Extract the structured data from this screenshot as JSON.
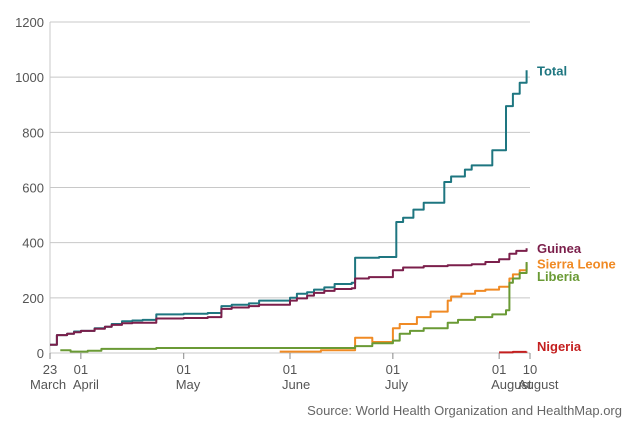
{
  "chart_data": {
    "type": "line",
    "ylim": [
      0,
      1200
    ],
    "yticks": [
      0,
      200,
      400,
      600,
      800,
      1000,
      1200
    ],
    "grid": "horizontal",
    "x_range": [
      "2014-03-23",
      "2014-08-10"
    ],
    "xticks": [
      {
        "date": "2014-03-23",
        "day": "23",
        "month": "March"
      },
      {
        "date": "2014-04-01",
        "day": "01",
        "month": "April"
      },
      {
        "date": "2014-05-01",
        "day": "01",
        "month": "May"
      },
      {
        "date": "2014-06-01",
        "day": "01",
        "month": "June"
      },
      {
        "date": "2014-07-01",
        "day": "01",
        "month": "July"
      },
      {
        "date": "2014-08-01",
        "day": "01",
        "month": "August"
      },
      {
        "date": "2014-08-10",
        "day": "10",
        "month": "August"
      }
    ],
    "series": [
      {
        "name": "Total",
        "color": "#1e7680",
        "points": [
          [
            "2014-03-23",
            30
          ],
          [
            "2014-03-25",
            65
          ],
          [
            "2014-03-28",
            70
          ],
          [
            "2014-03-30",
            78
          ],
          [
            "2014-04-01",
            80
          ],
          [
            "2014-04-05",
            90
          ],
          [
            "2014-04-08",
            95
          ],
          [
            "2014-04-10",
            105
          ],
          [
            "2014-04-13",
            115
          ],
          [
            "2014-04-16",
            118
          ],
          [
            "2014-04-19",
            120
          ],
          [
            "2014-04-23",
            140
          ],
          [
            "2014-05-01",
            142
          ],
          [
            "2014-05-08",
            145
          ],
          [
            "2014-05-12",
            170
          ],
          [
            "2014-05-15",
            175
          ],
          [
            "2014-05-20",
            180
          ],
          [
            "2014-05-23",
            190
          ],
          [
            "2014-06-01",
            200
          ],
          [
            "2014-06-03",
            215
          ],
          [
            "2014-06-06",
            220
          ],
          [
            "2014-06-08",
            230
          ],
          [
            "2014-06-11",
            238
          ],
          [
            "2014-06-14",
            250
          ],
          [
            "2014-06-19",
            255
          ],
          [
            "2014-06-20",
            345
          ],
          [
            "2014-06-27",
            348
          ],
          [
            "2014-07-02",
            475
          ],
          [
            "2014-07-04",
            490
          ],
          [
            "2014-07-07",
            520
          ],
          [
            "2014-07-10",
            545
          ],
          [
            "2014-07-16",
            620
          ],
          [
            "2014-07-18",
            640
          ],
          [
            "2014-07-22",
            665
          ],
          [
            "2014-07-24",
            680
          ],
          [
            "2014-07-28",
            680
          ],
          [
            "2014-07-30",
            735
          ],
          [
            "2014-08-03",
            895
          ],
          [
            "2014-08-05",
            940
          ],
          [
            "2014-08-07",
            980
          ],
          [
            "2014-08-09",
            1025
          ]
        ]
      },
      {
        "name": "Guinea",
        "color": "#7b1f4b",
        "points": [
          [
            "2014-03-23",
            30
          ],
          [
            "2014-03-25",
            65
          ],
          [
            "2014-03-28",
            70
          ],
          [
            "2014-03-30",
            75
          ],
          [
            "2014-04-01",
            80
          ],
          [
            "2014-04-05",
            88
          ],
          [
            "2014-04-08",
            95
          ],
          [
            "2014-04-10",
            102
          ],
          [
            "2014-04-13",
            108
          ],
          [
            "2014-04-16",
            110
          ],
          [
            "2014-04-19",
            110
          ],
          [
            "2014-04-23",
            125
          ],
          [
            "2014-05-01",
            127
          ],
          [
            "2014-05-08",
            130
          ],
          [
            "2014-05-12",
            160
          ],
          [
            "2014-05-15",
            165
          ],
          [
            "2014-05-20",
            170
          ],
          [
            "2014-05-23",
            175
          ],
          [
            "2014-06-01",
            190
          ],
          [
            "2014-06-03",
            198
          ],
          [
            "2014-06-06",
            208
          ],
          [
            "2014-06-08",
            218
          ],
          [
            "2014-06-11",
            225
          ],
          [
            "2014-06-14",
            232
          ],
          [
            "2014-06-19",
            235
          ],
          [
            "2014-06-20",
            270
          ],
          [
            "2014-06-24",
            275
          ],
          [
            "2014-07-01",
            300
          ],
          [
            "2014-07-04",
            310
          ],
          [
            "2014-07-10",
            315
          ],
          [
            "2014-07-17",
            318
          ],
          [
            "2014-07-24",
            322
          ],
          [
            "2014-07-28",
            330
          ],
          [
            "2014-08-01",
            340
          ],
          [
            "2014-08-04",
            360
          ],
          [
            "2014-08-06",
            370
          ],
          [
            "2014-08-09",
            380
          ]
        ]
      },
      {
        "name": "Sierra Leone",
        "color": "#f08a24",
        "points": [
          [
            "2014-05-29",
            5
          ],
          [
            "2014-06-10",
            10
          ],
          [
            "2014-06-20",
            55
          ],
          [
            "2014-06-25",
            40
          ],
          [
            "2014-07-01",
            90
          ],
          [
            "2014-07-03",
            105
          ],
          [
            "2014-07-08",
            130
          ],
          [
            "2014-07-12",
            150
          ],
          [
            "2014-07-17",
            190
          ],
          [
            "2014-07-18",
            205
          ],
          [
            "2014-07-21",
            215
          ],
          [
            "2014-07-25",
            225
          ],
          [
            "2014-07-28",
            230
          ],
          [
            "2014-08-01",
            240
          ],
          [
            "2014-08-04",
            270
          ],
          [
            "2014-08-05",
            285
          ],
          [
            "2014-08-07",
            300
          ],
          [
            "2014-08-09",
            325
          ]
        ]
      },
      {
        "name": "Liberia",
        "color": "#6a9a35",
        "points": [
          [
            "2014-03-26",
            10
          ],
          [
            "2014-03-29",
            5
          ],
          [
            "2014-04-03",
            8
          ],
          [
            "2014-04-07",
            15
          ],
          [
            "2014-04-23",
            18
          ],
          [
            "2014-06-20",
            25
          ],
          [
            "2014-06-25",
            35
          ],
          [
            "2014-07-01",
            45
          ],
          [
            "2014-07-03",
            70
          ],
          [
            "2014-07-06",
            80
          ],
          [
            "2014-07-10",
            90
          ],
          [
            "2014-07-17",
            110
          ],
          [
            "2014-07-20",
            120
          ],
          [
            "2014-07-25",
            130
          ],
          [
            "2014-07-30",
            140
          ],
          [
            "2014-08-03",
            155
          ],
          [
            "2014-08-04",
            255
          ],
          [
            "2014-08-05",
            270
          ],
          [
            "2014-08-07",
            290
          ],
          [
            "2014-08-09",
            330
          ]
        ]
      },
      {
        "name": "Nigeria",
        "color": "#c41f1f",
        "points": [
          [
            "2014-08-01",
            2
          ],
          [
            "2014-08-05",
            4
          ],
          [
            "2014-08-09",
            5
          ]
        ]
      }
    ],
    "source": "Source: World Health Organization and HealthMap.org"
  }
}
